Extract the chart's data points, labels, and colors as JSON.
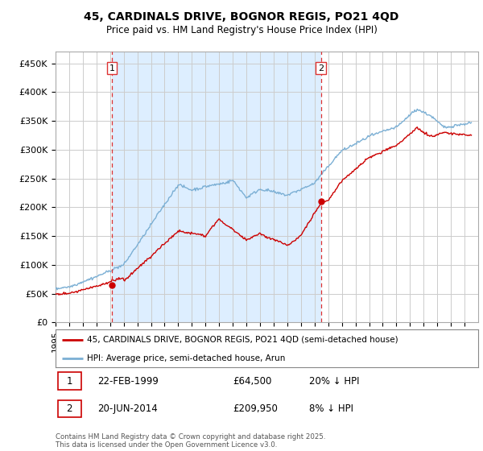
{
  "title_line1": "45, CARDINALS DRIVE, BOGNOR REGIS, PO21 4QD",
  "title_line2": "Price paid vs. HM Land Registry's House Price Index (HPI)",
  "ylim": [
    0,
    470000
  ],
  "yticks": [
    0,
    50000,
    100000,
    150000,
    200000,
    250000,
    300000,
    350000,
    400000,
    450000
  ],
  "ytick_labels": [
    "£0",
    "£50K",
    "£100K",
    "£150K",
    "£200K",
    "£250K",
    "£300K",
    "£350K",
    "£400K",
    "£450K"
  ],
  "background_color": "#ffffff",
  "plot_bg_color": "#ffffff",
  "grid_color": "#cccccc",
  "red_line_color": "#cc0000",
  "blue_line_color": "#7bafd4",
  "fill_color": "#ddeeff",
  "vline_color": "#dd3333",
  "purchase1_year": 1999.13,
  "purchase2_year": 2014.47,
  "purchase1_price": 64500,
  "purchase2_price": 209950,
  "legend_label_red": "45, CARDINALS DRIVE, BOGNOR REGIS, PO21 4QD (semi-detached house)",
  "legend_label_blue": "HPI: Average price, semi-detached house, Arun",
  "table_row1": [
    "1",
    "22-FEB-1999",
    "£64,500",
    "20% ↓ HPI"
  ],
  "table_row2": [
    "2",
    "20-JUN-2014",
    "£209,950",
    "8% ↓ HPI"
  ],
  "footer": "Contains HM Land Registry data © Crown copyright and database right 2025.\nThis data is licensed under the Open Government Licence v3.0.",
  "xstart": 1995,
  "xend": 2026
}
